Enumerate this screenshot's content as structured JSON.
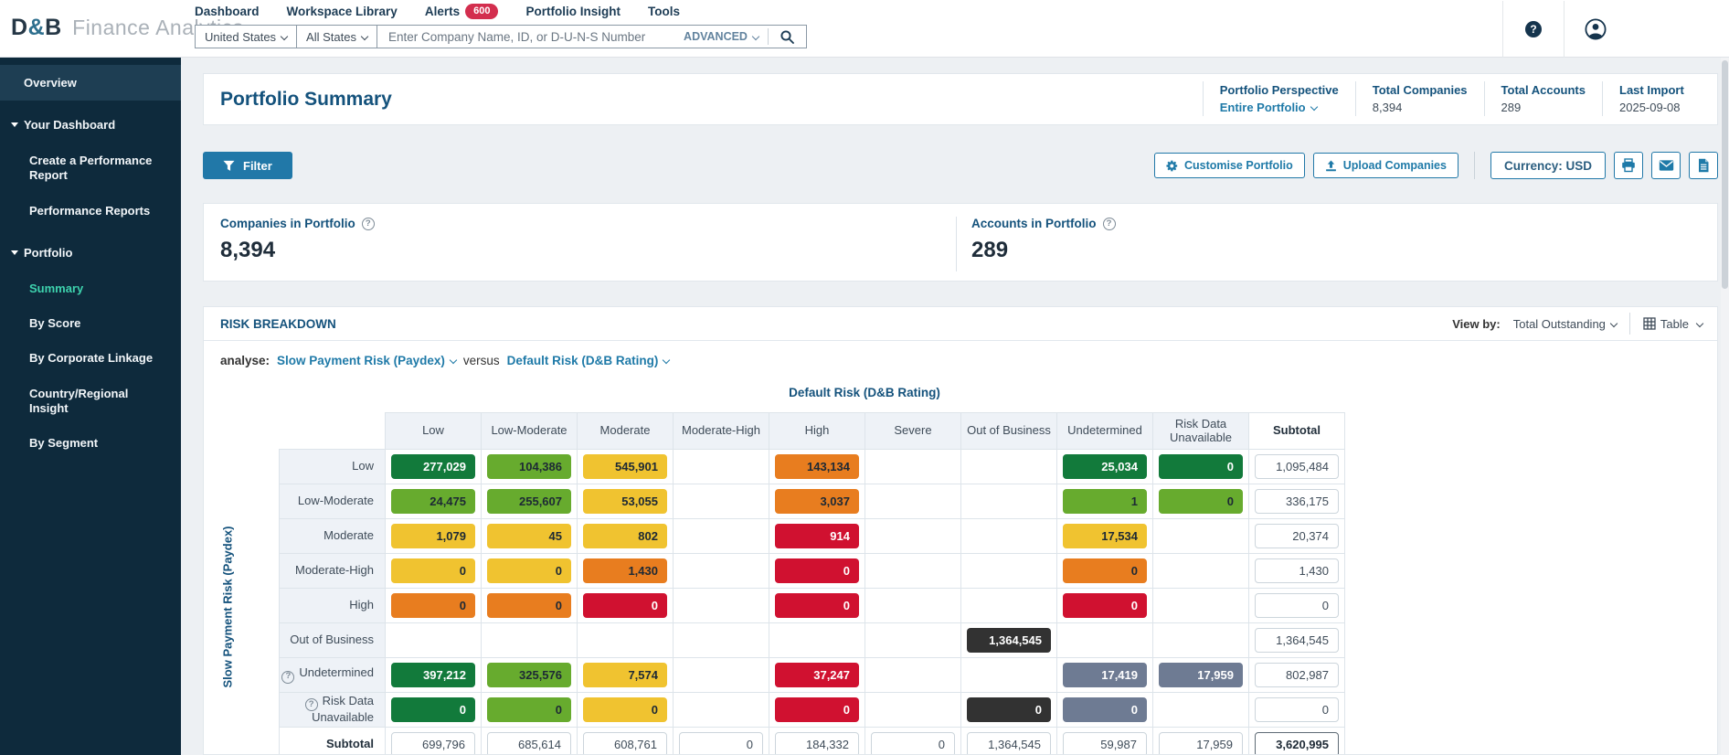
{
  "brand": {
    "dnb": "D",
    "amp": "&",
    "b": "B",
    "suite": "Finance Analytics"
  },
  "nav": {
    "items": [
      {
        "label": "Dashboard"
      },
      {
        "label": "Workspace Library"
      },
      {
        "label": "Alerts"
      },
      {
        "label": "Portfolio Insight"
      },
      {
        "label": "Tools"
      }
    ],
    "alerts_badge": "600"
  },
  "search": {
    "country": "United States",
    "state": "All States",
    "placeholder": "Enter Company Name, ID, or D-U-N-S Number",
    "advanced": "ADVANCED"
  },
  "sidebar": {
    "items": [
      {
        "label": "Overview"
      },
      {
        "label": "Your Dashboard"
      },
      {
        "label": "Create a Performance Report"
      },
      {
        "label": "Performance Reports"
      },
      {
        "label": "Portfolio"
      },
      {
        "label": "Summary"
      },
      {
        "label": "By Score"
      },
      {
        "label": "By Corporate Linkage"
      },
      {
        "label": "Country/Regional Insight"
      },
      {
        "label": "By Segment"
      }
    ]
  },
  "page": {
    "title": "Portfolio Summary",
    "stats": [
      {
        "label": "Portfolio Perspective",
        "value": "Entire Portfolio"
      },
      {
        "label": "Total Companies",
        "value": "8,394"
      },
      {
        "label": "Total Accounts",
        "value": "289"
      },
      {
        "label": "Last Import",
        "value": "2025-09-08"
      }
    ]
  },
  "toolbar": {
    "filter": "Filter",
    "customise": "Customise Portfolio",
    "upload": "Upload Companies",
    "currency": "Currency: USD"
  },
  "summary_cards": [
    {
      "label": "Companies in Portfolio",
      "value": "8,394"
    },
    {
      "label": "Accounts in Portfolio",
      "value": "289"
    }
  ],
  "risk_breakdown": {
    "title": "RISK BREAKDOWN",
    "view_by_label": "View by:",
    "view_by_value": "Total Outstanding",
    "table_toggle": "Table",
    "analyse_label": "analyse:",
    "analyse_value": "Slow Payment Risk (Paydex)",
    "versus_label": "versus",
    "versus_value": "Default Risk (D&B Rating)",
    "col_axis_title": "Default Risk (D&B Rating)",
    "row_axis_title": "Slow Payment Risk (Paydex)",
    "columns": [
      "Low",
      "Low-Moderate",
      "Moderate",
      "Moderate-High",
      "High",
      "Severe",
      "Out of Business",
      "Undetermined",
      "Risk Data Unavailable",
      "Subtotal"
    ],
    "rows": [
      {
        "label": "Low",
        "cells": [
          {
            "v": "277,029",
            "c": "dgreen"
          },
          {
            "v": "104,386",
            "c": "green"
          },
          {
            "v": "545,901",
            "c": "yellow"
          },
          null,
          {
            "v": "143,134",
            "c": "orange"
          },
          null,
          null,
          {
            "v": "25,034",
            "c": "dgreen"
          },
          {
            "v": "0",
            "c": "dgreen"
          },
          {
            "v": "1,095,484",
            "c": "box"
          }
        ]
      },
      {
        "label": "Low-Moderate",
        "cells": [
          {
            "v": "24,475",
            "c": "green"
          },
          {
            "v": "255,607",
            "c": "green"
          },
          {
            "v": "53,055",
            "c": "yellow"
          },
          null,
          {
            "v": "3,037",
            "c": "orange"
          },
          null,
          null,
          {
            "v": "1",
            "c": "green"
          },
          {
            "v": "0",
            "c": "green"
          },
          {
            "v": "336,175",
            "c": "box"
          }
        ]
      },
      {
        "label": "Moderate",
        "cells": [
          {
            "v": "1,079",
            "c": "yellow"
          },
          {
            "v": "45",
            "c": "yellow"
          },
          {
            "v": "802",
            "c": "yellow"
          },
          null,
          {
            "v": "914",
            "c": "red"
          },
          null,
          null,
          {
            "v": "17,534",
            "c": "yellow"
          },
          null,
          {
            "v": "20,374",
            "c": "box"
          }
        ]
      },
      {
        "label": "Moderate-High",
        "cells": [
          {
            "v": "0",
            "c": "yellow"
          },
          {
            "v": "0",
            "c": "yellow"
          },
          {
            "v": "1,430",
            "c": "orange"
          },
          null,
          {
            "v": "0",
            "c": "red"
          },
          null,
          null,
          {
            "v": "0",
            "c": "orange"
          },
          null,
          {
            "v": "1,430",
            "c": "box"
          }
        ]
      },
      {
        "label": "High",
        "cells": [
          {
            "v": "0",
            "c": "orange"
          },
          {
            "v": "0",
            "c": "orange"
          },
          {
            "v": "0",
            "c": "red"
          },
          null,
          {
            "v": "0",
            "c": "red"
          },
          null,
          null,
          {
            "v": "0",
            "c": "red"
          },
          null,
          {
            "v": "0",
            "c": "box"
          }
        ]
      },
      {
        "label": "Out of Business",
        "cells": [
          null,
          null,
          null,
          null,
          null,
          null,
          {
            "v": "1,364,545",
            "c": "black"
          },
          null,
          null,
          {
            "v": "1,364,545",
            "c": "box"
          }
        ]
      },
      {
        "label": "Undetermined",
        "help": true,
        "cells": [
          {
            "v": "397,212",
            "c": "dgreen"
          },
          {
            "v": "325,576",
            "c": "green"
          },
          {
            "v": "7,574",
            "c": "yellow"
          },
          null,
          {
            "v": "37,247",
            "c": "red"
          },
          null,
          null,
          {
            "v": "17,419",
            "c": "slate"
          },
          {
            "v": "17,959",
            "c": "slate"
          },
          {
            "v": "802,987",
            "c": "box"
          }
        ]
      },
      {
        "label": "Risk Data Unavailable",
        "help": true,
        "cells": [
          {
            "v": "0",
            "c": "dgreen"
          },
          {
            "v": "0",
            "c": "green"
          },
          {
            "v": "0",
            "c": "yellow"
          },
          null,
          {
            "v": "0",
            "c": "red"
          },
          null,
          {
            "v": "0",
            "c": "black"
          },
          {
            "v": "0",
            "c": "slate"
          },
          null,
          {
            "v": "0",
            "c": "box"
          }
        ]
      },
      {
        "label": "Subtotal",
        "bold": true,
        "cells": [
          {
            "v": "699,796",
            "c": "box"
          },
          {
            "v": "685,614",
            "c": "box"
          },
          {
            "v": "608,761",
            "c": "box"
          },
          {
            "v": "0",
            "c": "box"
          },
          {
            "v": "184,332",
            "c": "box"
          },
          {
            "v": "0",
            "c": "box"
          },
          {
            "v": "1,364,545",
            "c": "box"
          },
          {
            "v": "59,987",
            "c": "box"
          },
          {
            "v": "17,959",
            "c": "box"
          },
          {
            "v": "3,620,995",
            "c": "boxbold"
          }
        ]
      }
    ]
  },
  "cell_colors": {
    "dgreen": {
      "bg": "#127a3b",
      "fg": "#ffffff"
    },
    "green": {
      "bg": "#67ab2e",
      "fg": "#1d2935"
    },
    "yellow": {
      "bg": "#f0c330",
      "fg": "#1d2935"
    },
    "orange": {
      "bg": "#e87d1f",
      "fg": "#1d2935"
    },
    "red": {
      "bg": "#d01130",
      "fg": "#ffffff"
    },
    "black": {
      "bg": "#323232",
      "fg": "#ffffff"
    },
    "slate": {
      "bg": "#6e7b93",
      "fg": "#ffffff"
    }
  },
  "theme": {
    "accent_blue": "#1f7aa8",
    "heading_navy": "#14527c",
    "sidebar_bg": "#0e2a3c",
    "sidebar_selected": "#3ed3ae",
    "alert_red": "#d32e4e"
  }
}
